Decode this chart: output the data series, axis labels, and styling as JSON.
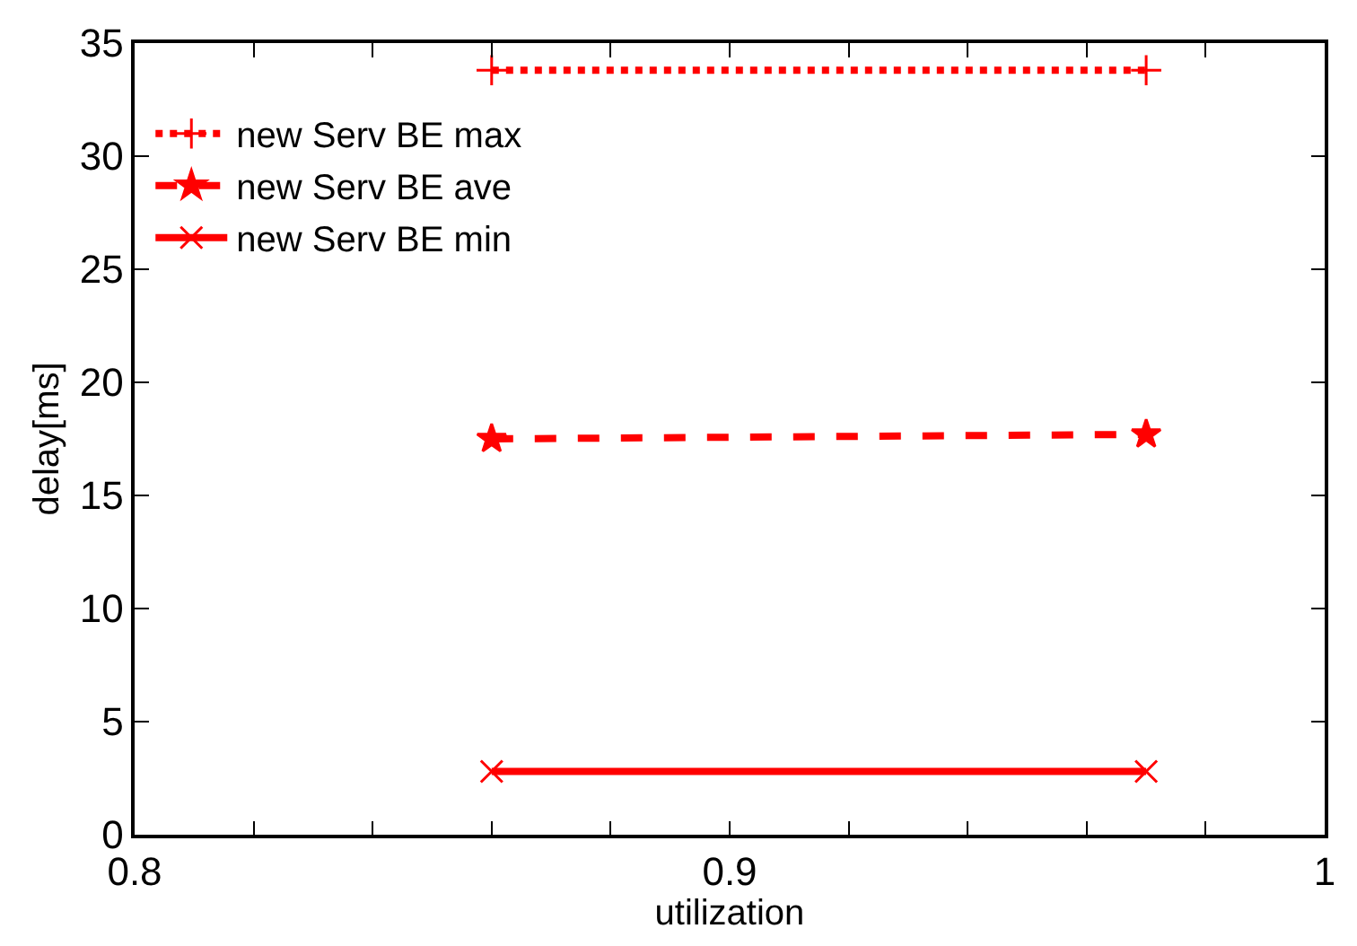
{
  "chart_data": {
    "type": "line",
    "xlabel": "utilization",
    "ylabel": "delay[ms]",
    "xlim": [
      0.8,
      1
    ],
    "ylim": [
      0,
      35
    ],
    "xticks": [
      0.8,
      {
        "value": 0.82,
        "label": null
      },
      {
        "value": 0.84,
        "label": null
      },
      {
        "value": 0.86,
        "label": null
      },
      {
        "value": 0.88,
        "label": null
      },
      0.9,
      {
        "value": 0.92,
        "label": null
      },
      {
        "value": 0.94,
        "label": null
      },
      {
        "value": 0.96,
        "label": null
      },
      {
        "value": 0.98,
        "label": null
      },
      1
    ],
    "yticks": [
      0,
      5,
      10,
      15,
      20,
      25,
      30,
      35
    ],
    "legend": "top left",
    "x": [
      0.86,
      0.97
    ],
    "series": [
      {
        "name": "new Serv BE max",
        "color": "#ff0000",
        "values": [
          33.8,
          33.8
        ],
        "line_style": "dotted",
        "marker": "cross"
      },
      {
        "name": "new Serv BE ave",
        "color": "#ff0000",
        "values": [
          17.5,
          17.7
        ],
        "line_style": "dashed",
        "marker": "star"
      },
      {
        "name": "new Serv BE min",
        "color": "#ff0000",
        "values": [
          2.8,
          2.8
        ],
        "line_style": "solid",
        "marker": "x"
      }
    ]
  }
}
